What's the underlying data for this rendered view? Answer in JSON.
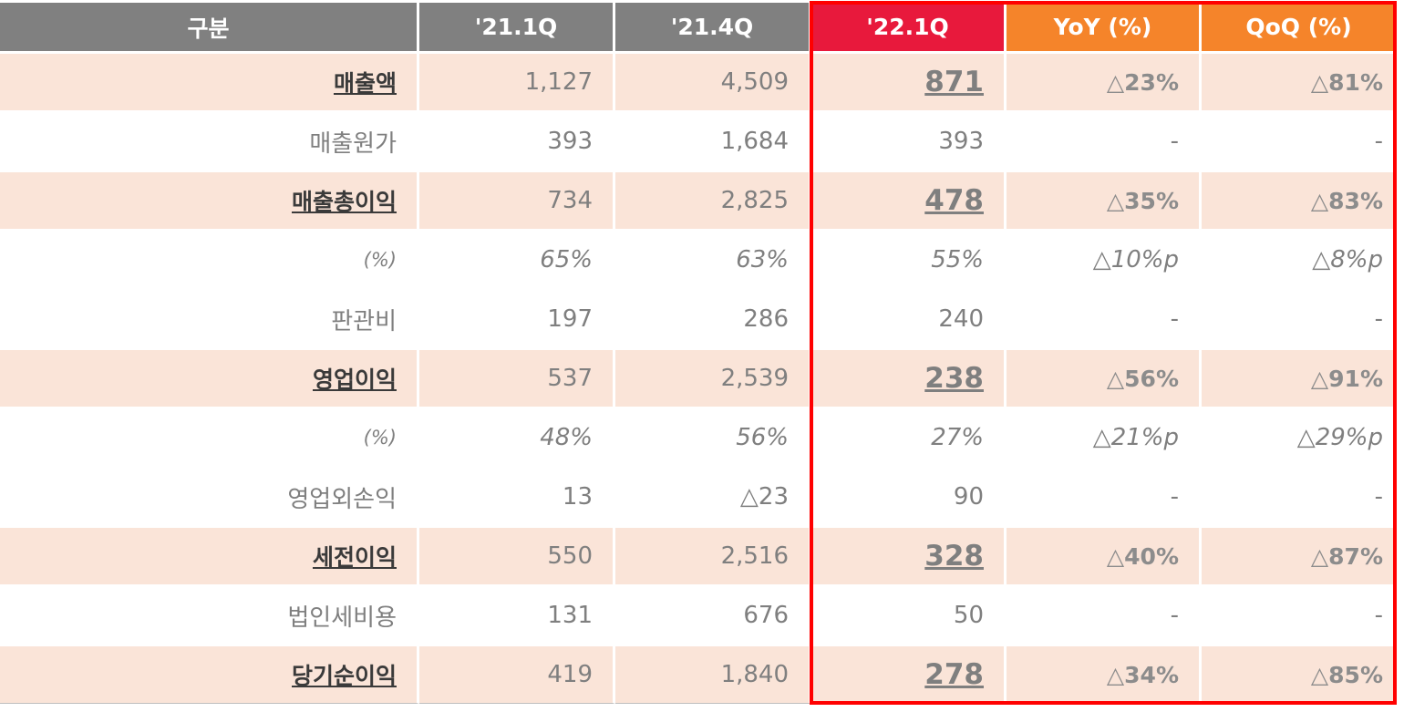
{
  "header": {
    "col0": "구분",
    "col1": "'21.1Q",
    "col2": "'21.4Q",
    "col3": "'22.1Q",
    "col4": "YoY (%)",
    "col5": "QoQ (%)"
  },
  "colors": {
    "header_gray": "#808080",
    "header_current": "#e8193c",
    "header_change": "#f5842a",
    "highlight_row": "#fae4d8",
    "box_border": "#ff0000"
  },
  "rows": [
    {
      "label": "매출액",
      "q21_1": "1,127",
      "q21_4": "4,509",
      "q22_1": "871",
      "yoy": "△23%",
      "qoq": "△81%"
    },
    {
      "label": "매출원가",
      "q21_1": "393",
      "q21_4": "1,684",
      "q22_1": "393",
      "yoy": "-",
      "qoq": "-"
    },
    {
      "label": "매출총이익",
      "q21_1": "734",
      "q21_4": "2,825",
      "q22_1": "478",
      "yoy": "△35%",
      "qoq": "△83%"
    },
    {
      "label": "(%)",
      "q21_1": "65%",
      "q21_4": "63%",
      "q22_1": "55%",
      "yoy": "△10%p",
      "qoq": "△8%p"
    },
    {
      "label": "판관비",
      "q21_1": "197",
      "q21_4": "286",
      "q22_1": "240",
      "yoy": "-",
      "qoq": "-"
    },
    {
      "label": "영업이익",
      "q21_1": "537",
      "q21_4": "2,539",
      "q22_1": "238",
      "yoy": "△56%",
      "qoq": "△91%"
    },
    {
      "label": "(%)",
      "q21_1": "48%",
      "q21_4": "56%",
      "q22_1": "27%",
      "yoy": "△21%p",
      "qoq": "△29%p"
    },
    {
      "label": "영업외손익",
      "q21_1": "13",
      "q21_4": "△23",
      "q22_1": "90",
      "yoy": "-",
      "qoq": "-"
    },
    {
      "label": "세전이익",
      "q21_1": "550",
      "q21_4": "2,516",
      "q22_1": "328",
      "yoy": "△40%",
      "qoq": "△87%"
    },
    {
      "label": "법인세비용",
      "q21_1": "131",
      "q21_4": "676",
      "q22_1": "50",
      "yoy": "-",
      "qoq": "-"
    },
    {
      "label": "당기순이익",
      "q21_1": "419",
      "q21_4": "1,840",
      "q22_1": "278",
      "yoy": "△34%",
      "qoq": "△85%"
    }
  ]
}
